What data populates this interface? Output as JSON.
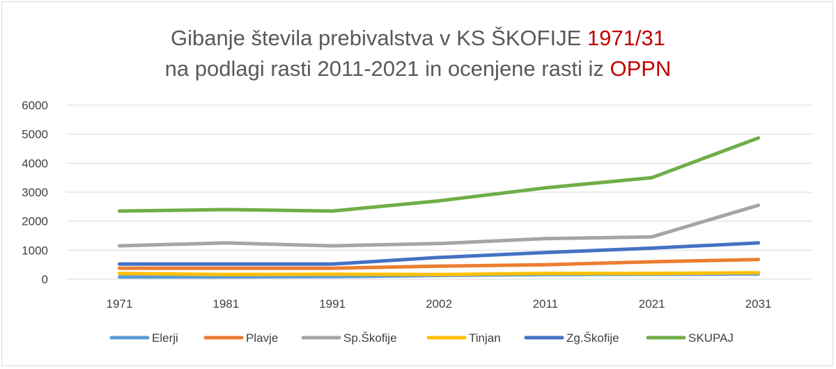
{
  "chart_data": {
    "type": "line",
    "title": {
      "line1": {
        "text": "Gibanje števila prebivalstva v KS ŠKOFIJE ",
        "accent": "1971/31"
      },
      "line2": {
        "text": "na podlagi rasti 2011-2021 in ocenjene rasti iz ",
        "accent": "OPPN"
      }
    },
    "xlabel": "",
    "ylabel": "",
    "categories": [
      "1971",
      "1981",
      "1991",
      "2002",
      "2011",
      "2021",
      "2031"
    ],
    "ylim": [
      0,
      6000
    ],
    "yticks": [
      0,
      1000,
      2000,
      3000,
      4000,
      5000,
      6000
    ],
    "grid": true,
    "legend_position": "bottom",
    "accent_color": "#c00000",
    "series": [
      {
        "name": "Elerji",
        "color": "#5b9bd5",
        "values": [
          80,
          80,
          90,
          130,
          160,
          170,
          180
        ]
      },
      {
        "name": "Plavje",
        "color": "#ed7d31",
        "values": [
          380,
          380,
          380,
          450,
          500,
          600,
          680
        ]
      },
      {
        "name": "Sp.Škofije",
        "color": "#a5a5a5",
        "values": [
          1150,
          1250,
          1150,
          1230,
          1400,
          1460,
          2550
        ]
      },
      {
        "name": "Tinjan",
        "color": "#ffc000",
        "values": [
          200,
          160,
          170,
          160,
          200,
          200,
          220
        ]
      },
      {
        "name": "Zg.Škofije",
        "color": "#4472c4",
        "values": [
          520,
          520,
          520,
          750,
          920,
          1070,
          1250
        ]
      },
      {
        "name": "SKUPAJ",
        "color": "#70ad47",
        "values": [
          2350,
          2400,
          2350,
          2700,
          3150,
          3500,
          4870
        ]
      }
    ]
  }
}
